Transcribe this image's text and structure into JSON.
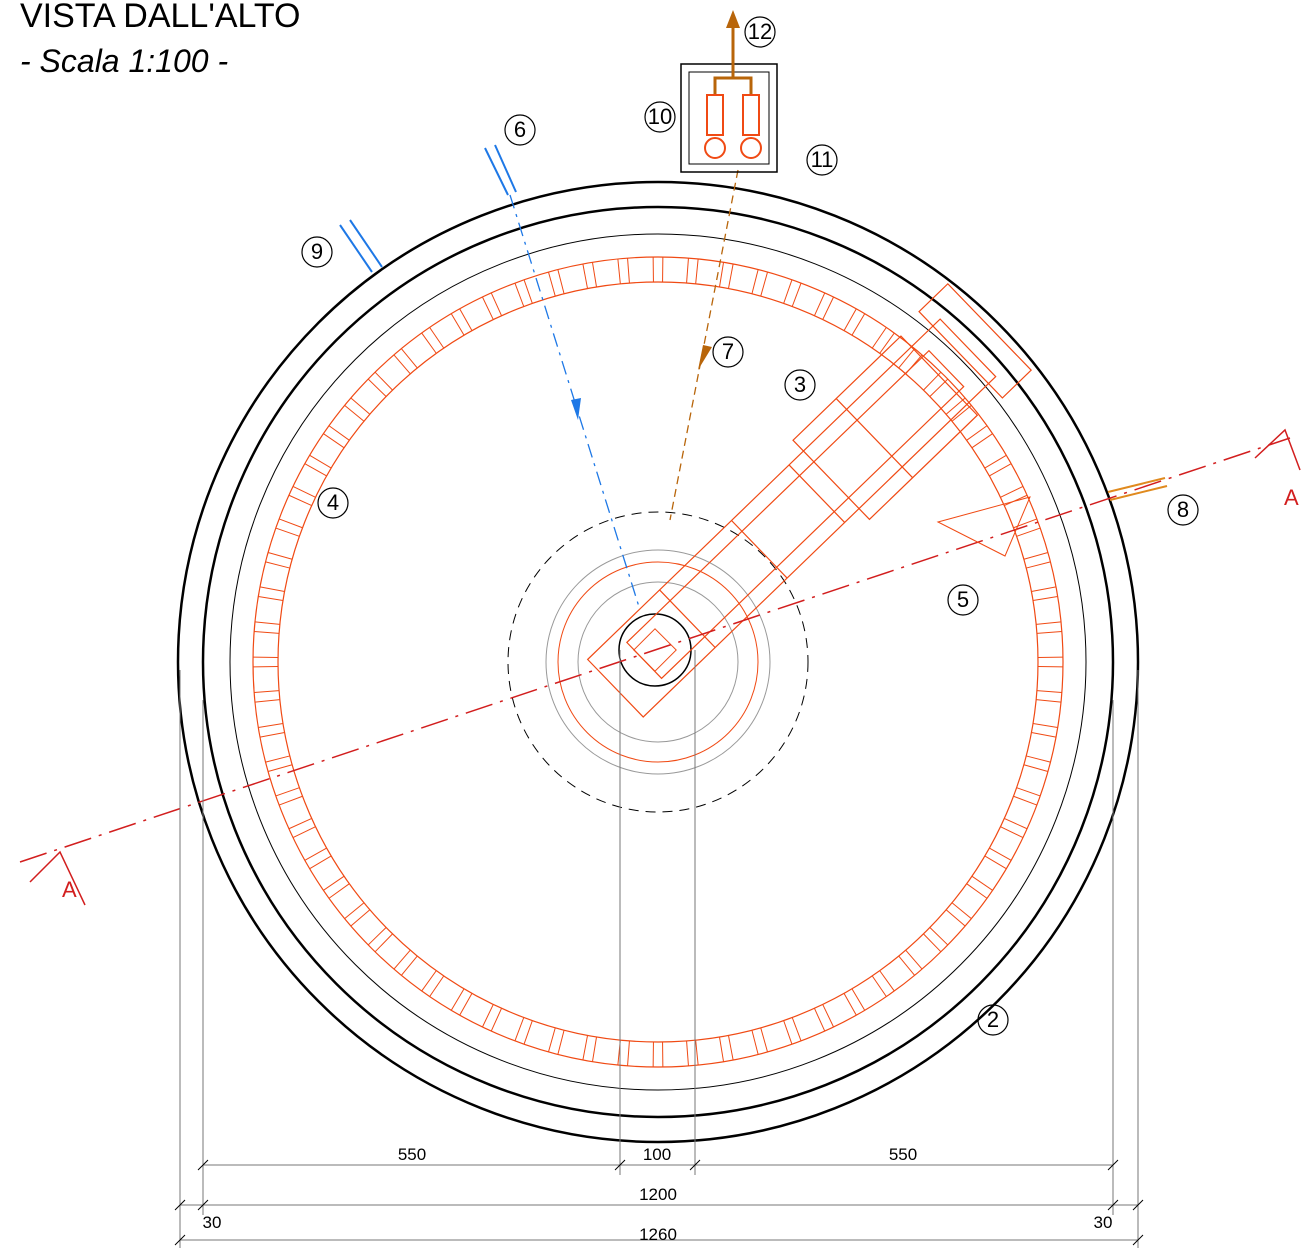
{
  "header": {
    "title": "VISTA DALL'ALTO",
    "subtitle": "- Scala 1:100 -"
  },
  "callouts": [
    "2",
    "3",
    "4",
    "5",
    "6",
    "7",
    "8",
    "9",
    "10",
    "11",
    "12"
  ],
  "section_labels": [
    "A",
    "A"
  ],
  "dimensions": [
    "550",
    "100",
    "550",
    "1200",
    "30",
    "30",
    "1260"
  ]
}
